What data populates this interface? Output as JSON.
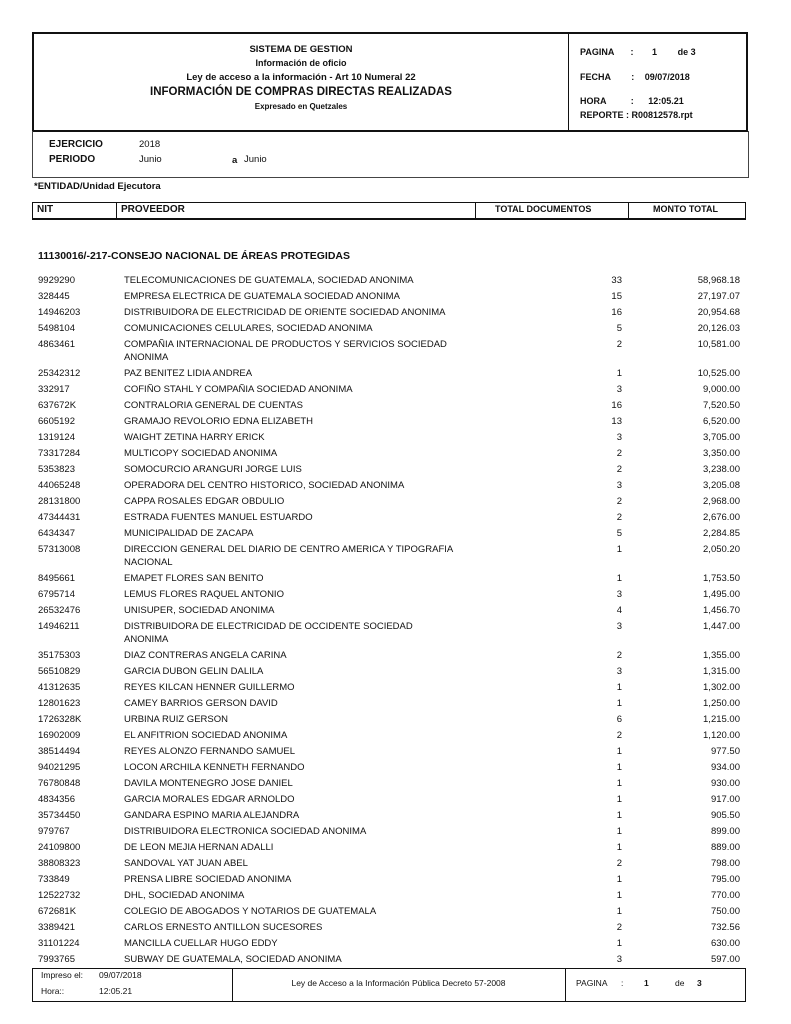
{
  "header": {
    "system": "SISTEMA DE GESTION",
    "subtitle": "Información de oficio",
    "law": "Ley de acceso a la información - Art 10 Numeral 22",
    "title": "INFORMACIÓN DE COMPRAS DIRECTAS REALIZADAS",
    "currency": "Expresado en Quetzales",
    "pagina_label": "PAGINA",
    "page": "1",
    "de_label": "de",
    "total_pages": "3",
    "fecha_label": "FECHA",
    "fecha": "09/07/2018",
    "hora_label": "HORA",
    "hora": "12:05.21",
    "reporte_label": "REPORTE :",
    "reporte": "R00812578.rpt"
  },
  "params": {
    "ejercicio_label": "EJERCICIO",
    "ejercicio": "2018",
    "periodo_label": "PERIODO",
    "from": "Junio",
    "a_label": "a",
    "to": "Junio"
  },
  "entity_label": "*ENTIDAD/Unidad Ejecutora",
  "columns": {
    "nit": "NIT",
    "proveedor": "PROVEEDOR",
    "docs": "TOTAL DOCUMENTOS",
    "monto": "MONTO TOTAL"
  },
  "section": "11130016/-217-CONSEJO NACIONAL DE ÁREAS PROTEGIDAS",
  "rows": [
    {
      "nit": "9929290",
      "prov": "TELECOMUNICACIONES DE GUATEMALA, SOCIEDAD ANONIMA",
      "docs": "33",
      "monto": "58,968.18"
    },
    {
      "nit": "328445",
      "prov": "EMPRESA ELECTRICA DE GUATEMALA SOCIEDAD ANONIMA",
      "docs": "15",
      "monto": "27,197.07"
    },
    {
      "nit": "14946203",
      "prov": "DISTRIBUIDORA DE ELECTRICIDAD DE ORIENTE SOCIEDAD ANONIMA",
      "docs": "16",
      "monto": "20,954.68"
    },
    {
      "nit": "5498104",
      "prov": "COMUNICACIONES CELULARES, SOCIEDAD ANONIMA",
      "docs": "5",
      "monto": "20,126.03"
    },
    {
      "nit": "4863461",
      "prov": "COMPAÑIA INTERNACIONAL DE PRODUCTOS Y SERVICIOS SOCIEDAD ANONIMA",
      "docs": "2",
      "monto": "10,581.00"
    },
    {
      "nit": "25342312",
      "prov": "PAZ BENITEZ LIDIA ANDREA",
      "docs": "1",
      "monto": "10,525.00"
    },
    {
      "nit": "332917",
      "prov": "COFIÑO STAHL Y COMPAÑIA SOCIEDAD ANONIMA",
      "docs": "3",
      "monto": "9,000.00"
    },
    {
      "nit": "637672K",
      "prov": "CONTRALORIA GENERAL DE CUENTAS",
      "docs": "16",
      "monto": "7,520.50"
    },
    {
      "nit": "6605192",
      "prov": "GRAMAJO REVOLORIO EDNA ELIZABETH",
      "docs": "13",
      "monto": "6,520.00"
    },
    {
      "nit": "1319124",
      "prov": "WAIGHT ZETINA HARRY ERICK",
      "docs": "3",
      "monto": "3,705.00"
    },
    {
      "nit": "73317284",
      "prov": "MULTICOPY SOCIEDAD ANONIMA",
      "docs": "2",
      "monto": "3,350.00"
    },
    {
      "nit": "5353823",
      "prov": "SOMOCURCIO ARANGURI JORGE LUIS",
      "docs": "2",
      "monto": "3,238.00"
    },
    {
      "nit": "44065248",
      "prov": "OPERADORA DEL CENTRO HISTORICO, SOCIEDAD ANONIMA",
      "docs": "3",
      "monto": "3,205.08"
    },
    {
      "nit": "28131800",
      "prov": "CAPPA ROSALES EDGAR OBDULIO",
      "docs": "2",
      "monto": "2,968.00"
    },
    {
      "nit": "47344431",
      "prov": "ESTRADA FUENTES MANUEL ESTUARDO",
      "docs": "2",
      "monto": "2,676.00"
    },
    {
      "nit": "6434347",
      "prov": "MUNICIPALIDAD DE ZACAPA",
      "docs": "5",
      "monto": "2,284.85"
    },
    {
      "nit": "57313008",
      "prov": "DIRECCION GENERAL DEL DIARIO DE CENTRO AMERICA Y TIPOGRAFIA NACIONAL",
      "docs": "1",
      "monto": "2,050.20"
    },
    {
      "nit": "8495661",
      "prov": "EMAPET FLORES SAN BENITO",
      "docs": "1",
      "monto": "1,753.50"
    },
    {
      "nit": "6795714",
      "prov": "LEMUS FLORES RAQUEL ANTONIO",
      "docs": "3",
      "monto": "1,495.00"
    },
    {
      "nit": "26532476",
      "prov": "UNISUPER, SOCIEDAD ANONIMA",
      "docs": "4",
      "monto": "1,456.70"
    },
    {
      "nit": "14946211",
      "prov": "DISTRIBUIDORA DE ELECTRICIDAD DE OCCIDENTE SOCIEDAD ANONIMA",
      "docs": "3",
      "monto": "1,447.00"
    },
    {
      "nit": "35175303",
      "prov": "DIAZ CONTRERAS ANGELA CARINA",
      "docs": "2",
      "monto": "1,355.00"
    },
    {
      "nit": "56510829",
      "prov": "GARCIA DUBON GELIN DALILA",
      "docs": "3",
      "monto": "1,315.00"
    },
    {
      "nit": "41312635",
      "prov": "REYES KILCAN HENNER GUILLERMO",
      "docs": "1",
      "monto": "1,302.00"
    },
    {
      "nit": "12801623",
      "prov": "CAMEY BARRIOS GERSON DAVID",
      "docs": "1",
      "monto": "1,250.00"
    },
    {
      "nit": "1726328K",
      "prov": "URBINA RUIZ GERSON",
      "docs": "6",
      "monto": "1,215.00"
    },
    {
      "nit": "16902009",
      "prov": "EL ANFITRION SOCIEDAD ANONIMA",
      "docs": "2",
      "monto": "1,120.00"
    },
    {
      "nit": "38514494",
      "prov": "REYES ALONZO FERNANDO SAMUEL",
      "docs": "1",
      "monto": "977.50"
    },
    {
      "nit": "94021295",
      "prov": "LOCON ARCHILA KENNETH FERNANDO",
      "docs": "1",
      "monto": "934.00"
    },
    {
      "nit": "76780848",
      "prov": "DAVILA MONTENEGRO JOSE DANIEL",
      "docs": "1",
      "monto": "930.00"
    },
    {
      "nit": "4834356",
      "prov": "GARCIA MORALES EDGAR ARNOLDO",
      "docs": "1",
      "monto": "917.00"
    },
    {
      "nit": "35734450",
      "prov": "GANDARA ESPINO MARIA ALEJANDRA",
      "docs": "1",
      "monto": "905.50"
    },
    {
      "nit": "979767",
      "prov": "DISTRIBUIDORA ELECTRONICA SOCIEDAD ANONIMA",
      "docs": "1",
      "monto": "899.00"
    },
    {
      "nit": "24109800",
      "prov": "DE LEON MEJIA HERNAN ADALLI",
      "docs": "1",
      "monto": "889.00"
    },
    {
      "nit": "38808323",
      "prov": "SANDOVAL YAT JUAN ABEL",
      "docs": "2",
      "monto": "798.00"
    },
    {
      "nit": "733849",
      "prov": "PRENSA LIBRE  SOCIEDAD ANONIMA",
      "docs": "1",
      "monto": "795.00"
    },
    {
      "nit": "12522732",
      "prov": "DHL, SOCIEDAD ANONIMA",
      "docs": "1",
      "monto": "770.00"
    },
    {
      "nit": "672681K",
      "prov": "COLEGIO DE ABOGADOS Y NOTARIOS DE GUATEMALA",
      "docs": "1",
      "monto": "750.00"
    },
    {
      "nit": "3389421",
      "prov": "CARLOS ERNESTO ANTILLON SUCESORES",
      "docs": "2",
      "monto": "732.56"
    },
    {
      "nit": "31101224",
      "prov": "MANCILLA CUELLAR HUGO EDDY",
      "docs": "1",
      "monto": "630.00"
    },
    {
      "nit": "7993765",
      "prov": "SUBWAY DE GUATEMALA, SOCIEDAD ANONIMA",
      "docs": "3",
      "monto": "597.00"
    }
  ],
  "footer": {
    "impreso_label": "Impreso el:",
    "impreso": "09/07/2018",
    "hora_label": "Hora::",
    "hora": "12:05.21",
    "law": "Ley de Acceso a la Información Pública Decreto 57-2008",
    "pagina_label": "PAGINA",
    "sep": ":",
    "page": "1",
    "de_label": "de",
    "total_pages": "3"
  }
}
